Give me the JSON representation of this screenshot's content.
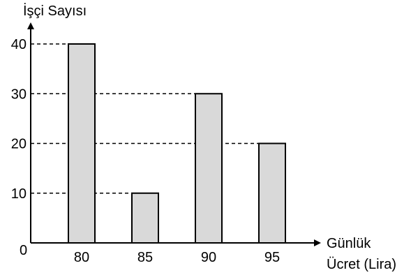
{
  "chart_data": {
    "type": "bar",
    "ylabel": "İşçi Sayısı",
    "xlabel_line1": "Günlük",
    "xlabel_line2": "Ücret (Lira)",
    "origin_label": "0",
    "categories": [
      "80",
      "85",
      "90",
      "95"
    ],
    "values": [
      40,
      10,
      30,
      20
    ],
    "yticks": [
      10,
      20,
      30,
      40
    ],
    "ylim": [
      0,
      40
    ],
    "grid": false,
    "colors": {
      "bar_fill": "#d9d9d9",
      "bar_stroke": "#000000",
      "axis": "#000000"
    }
  }
}
